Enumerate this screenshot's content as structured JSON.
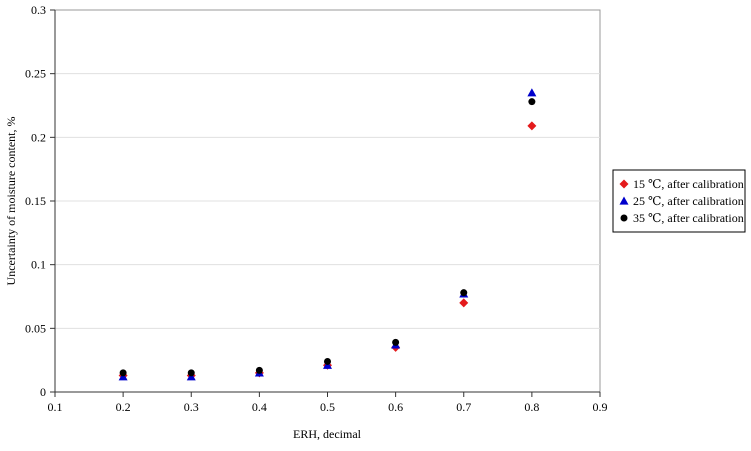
{
  "chart_data": {
    "type": "scatter",
    "xlabel": "ERH, decimal",
    "ylabel": "Uncertainty of moisture content, %",
    "xlim": [
      0.1,
      0.9
    ],
    "ylim": [
      0,
      0.3
    ],
    "x_ticks": [
      "0.1",
      "0.2",
      "0.3",
      "0.4",
      "0.5",
      "0.6",
      "0.7",
      "0.8",
      "0.9"
    ],
    "y_ticks": [
      "0",
      "0.05",
      "0.1",
      "0.15",
      "0.2",
      "0.25",
      "0.3"
    ],
    "grid": "horizontal",
    "legend_position": "right",
    "series": [
      {
        "name": "15 ℃, after calibration",
        "marker": "diamond",
        "color": "#e41a1c",
        "x": [
          0.2,
          0.3,
          0.4,
          0.5,
          0.6,
          0.7,
          0.8
        ],
        "y": [
          0.013,
          0.013,
          0.015,
          0.021,
          0.035,
          0.07,
          0.209
        ]
      },
      {
        "name": "25 ℃, after calibration",
        "marker": "triangle",
        "color": "#0000cc",
        "x": [
          0.2,
          0.3,
          0.4,
          0.5,
          0.6,
          0.7,
          0.8
        ],
        "y": [
          0.012,
          0.012,
          0.015,
          0.021,
          0.037,
          0.077,
          0.235
        ]
      },
      {
        "name": "35 ℃, after calibration",
        "marker": "circle",
        "color": "#000000",
        "x": [
          0.2,
          0.3,
          0.4,
          0.5,
          0.6,
          0.7,
          0.8
        ],
        "y": [
          0.015,
          0.015,
          0.017,
          0.024,
          0.039,
          0.078,
          0.228
        ]
      }
    ]
  }
}
